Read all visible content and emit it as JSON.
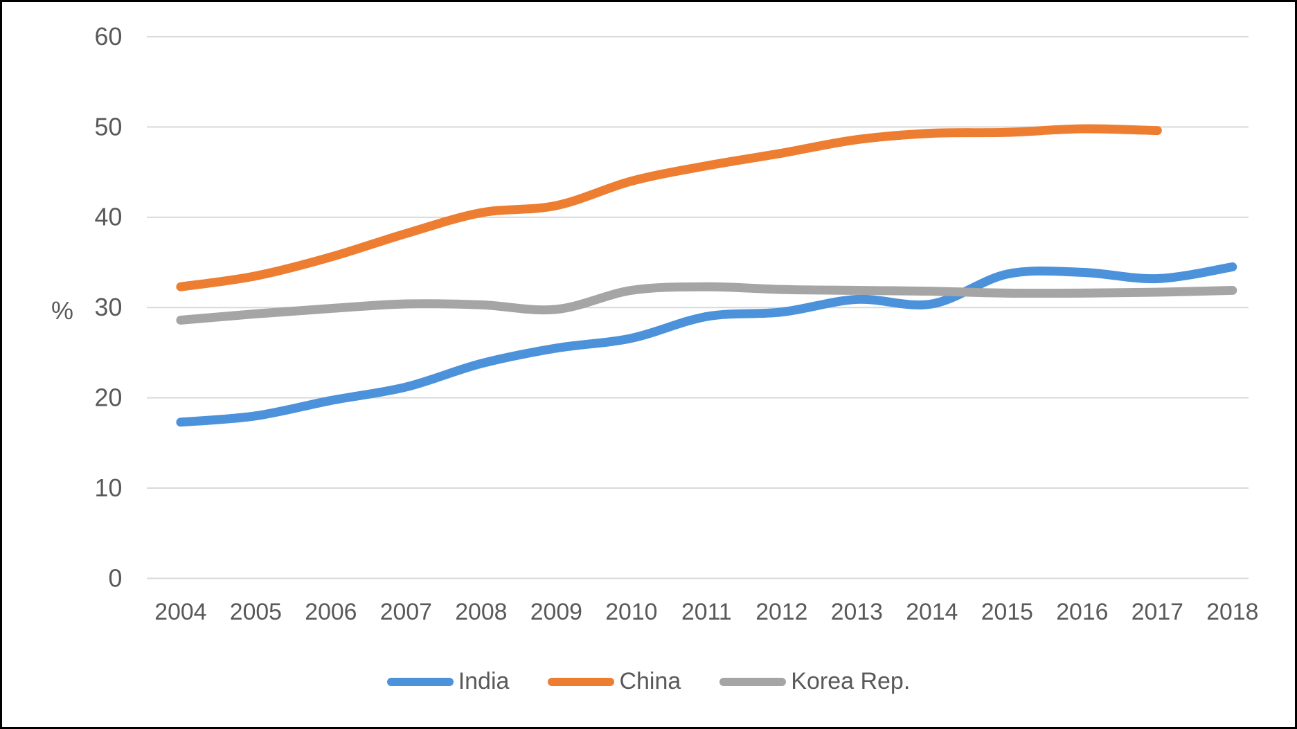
{
  "chart_data": {
    "type": "line",
    "title": "",
    "x": [
      2004,
      2005,
      2006,
      2007,
      2008,
      2009,
      2010,
      2011,
      2012,
      2013,
      2014,
      2015,
      2016,
      2017,
      2018
    ],
    "xlabel": "",
    "ylabel": "%",
    "ylim": [
      0,
      60
    ],
    "y_ticks": [
      0,
      10,
      20,
      30,
      40,
      50,
      60
    ],
    "grid": "horizontal",
    "line_style": "smoothed",
    "legend_position": "bottom",
    "series": [
      {
        "name": "India",
        "color": "#4B92DB",
        "values": [
          17.3,
          18.0,
          19.7,
          21.2,
          23.8,
          25.5,
          26.6,
          29.0,
          29.5,
          30.9,
          30.4,
          33.7,
          33.9,
          33.2,
          34.5
        ]
      },
      {
        "name": "China",
        "color": "#ED7D31",
        "values": [
          32.3,
          33.5,
          35.6,
          38.2,
          40.5,
          41.3,
          44.0,
          45.7,
          47.1,
          48.6,
          49.3,
          49.4,
          49.8,
          49.6,
          null
        ]
      },
      {
        "name": "Korea Rep.",
        "color": "#A5A5A5",
        "values": [
          28.6,
          29.3,
          29.9,
          30.4,
          30.3,
          29.8,
          31.9,
          32.3,
          32.0,
          31.9,
          31.8,
          31.6,
          31.6,
          31.7,
          31.9
        ]
      }
    ]
  },
  "style": {
    "axis_text_color": "#595959",
    "gridline_color": "#D9D9D9",
    "background_color": "#FFFFFF",
    "border_color": "#000000"
  }
}
